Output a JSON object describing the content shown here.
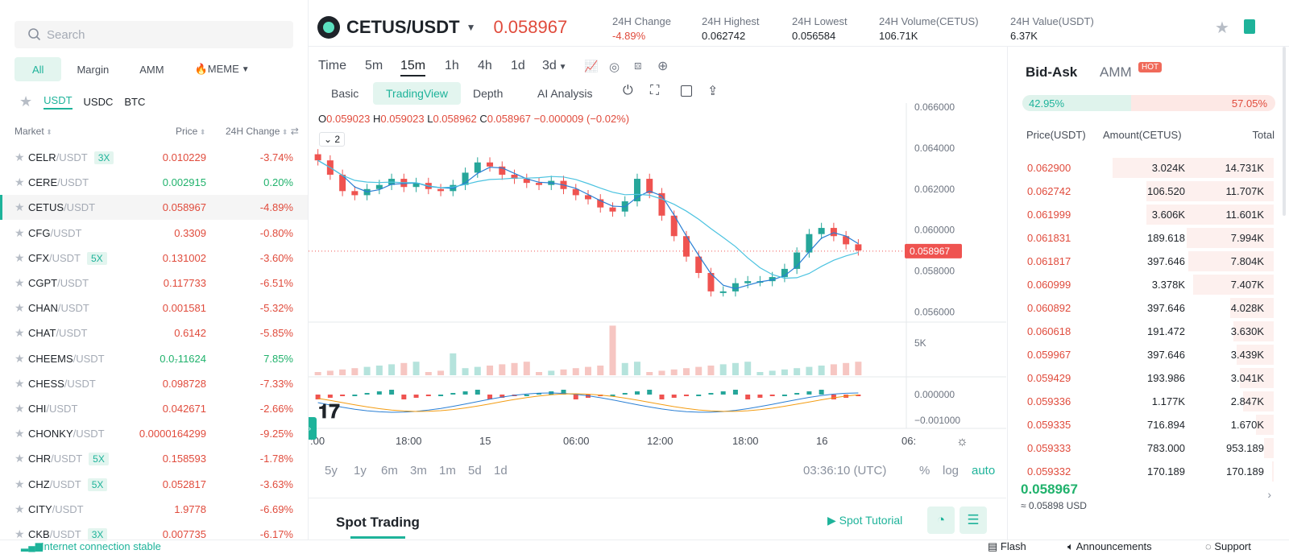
{
  "left": {
    "search_placeholder": "Search",
    "tabs": [
      "All",
      "Margin",
      "AMM",
      "🔥MEME"
    ],
    "quote_tabs": [
      "USDT",
      "USDC",
      "BTC"
    ],
    "headers": {
      "market": "Market",
      "price": "Price",
      "change": "24H Change"
    },
    "markets": [
      {
        "base": "CELR",
        "quote": "/USDT",
        "lev": "3X",
        "price": "0.010229",
        "change": "-3.74%",
        "up": false
      },
      {
        "base": "CERE",
        "quote": "/USDT",
        "lev": "",
        "price": "0.002915",
        "change": "0.20%",
        "up": true
      },
      {
        "base": "CETUS",
        "quote": "/USDT",
        "lev": "",
        "price": "0.058967",
        "change": "-4.89%",
        "up": false
      },
      {
        "base": "CFG",
        "quote": "/USDT",
        "lev": "",
        "price": "0.3309",
        "change": "-0.80%",
        "up": false
      },
      {
        "base": "CFX",
        "quote": "/USDT",
        "lev": "5X",
        "price": "0.131002",
        "change": "-3.60%",
        "up": false
      },
      {
        "base": "CGPT",
        "quote": "/USDT",
        "lev": "",
        "price": "0.117733",
        "change": "-6.51%",
        "up": false
      },
      {
        "base": "CHAN",
        "quote": "/USDT",
        "lev": "",
        "price": "0.001581",
        "change": "-5.32%",
        "up": false
      },
      {
        "base": "CHAT",
        "quote": "/USDT",
        "lev": "",
        "price": "0.6142",
        "change": "-5.85%",
        "up": false
      },
      {
        "base": "CHEEMS",
        "quote": "/USDT",
        "lev": "",
        "price": "0.0₇11624",
        "change": "7.85%",
        "up": true
      },
      {
        "base": "CHESS",
        "quote": "/USDT",
        "lev": "",
        "price": "0.098728",
        "change": "-7.33%",
        "up": false
      },
      {
        "base": "CHI",
        "quote": "/USDT",
        "lev": "",
        "price": "0.042671",
        "change": "-2.66%",
        "up": false
      },
      {
        "base": "CHONKY",
        "quote": "/USDT",
        "lev": "",
        "price": "0.0000164299",
        "change": "-9.25%",
        "up": false
      },
      {
        "base": "CHR",
        "quote": "/USDT",
        "lev": "5X",
        "price": "0.158593",
        "change": "-1.78%",
        "up": false
      },
      {
        "base": "CHZ",
        "quote": "/USDT",
        "lev": "5X",
        "price": "0.052817",
        "change": "-3.63%",
        "up": false
      },
      {
        "base": "CITY",
        "quote": "/USDT",
        "lev": "",
        "price": "1.9778",
        "change": "-6.69%",
        "up": false
      },
      {
        "base": "CKB",
        "quote": "/USDT",
        "lev": "3X",
        "price": "0.007735",
        "change": "-6.17%",
        "up": false
      }
    ]
  },
  "header": {
    "pair": "CETUS/USDT",
    "last_price": "0.058967",
    "stats": [
      {
        "label": "24H Change",
        "value": "-4.89%"
      },
      {
        "label": "24H Highest",
        "value": "0.062742"
      },
      {
        "label": "24H Lowest",
        "value": "0.056584"
      },
      {
        "label": "24H Volume(CETUS)",
        "value": "106.71K"
      },
      {
        "label": "24H Value(USDT)",
        "value": "6.37K"
      }
    ]
  },
  "chart": {
    "timeframes": [
      "Time",
      "5m",
      "15m",
      "1h",
      "4h",
      "1d",
      "3d"
    ],
    "modes": [
      "Basic",
      "TradingView",
      "Depth",
      "AI Analysis"
    ],
    "ohlc": {
      "o_label": "O",
      "o": "0.059023",
      "h_label": "H",
      "h": "0.059023",
      "l_label": "L",
      "l": "0.058962",
      "c_label": "C",
      "c": "0.058967",
      "chg": "−0.000009 (−0.02%)"
    },
    "indicator_count": "2",
    "price_ticks": [
      "0.066000",
      "0.064000",
      "0.062000",
      "0.060000",
      "0.058000",
      "0.056000"
    ],
    "current_price_tag": "0.058967",
    "volume_tick": "5K",
    "macd_ticks": [
      "0.000000",
      "−0.001000"
    ],
    "time_ticks": [
      ":00",
      "18:00",
      "15",
      "06:00",
      "12:00",
      "18:00",
      "16",
      "06:"
    ],
    "ranges": [
      "5y",
      "1y",
      "6m",
      "3m",
      "1m",
      "5d",
      "1d"
    ],
    "clock": "03:36:10 (UTC)",
    "scale_opts": [
      "%",
      "log",
      "auto"
    ],
    "closes": [
      0.0634,
      0.0627,
      0.0619,
      0.0617,
      0.062,
      0.0622,
      0.0625,
      0.0621,
      0.0623,
      0.062,
      0.0619,
      0.0622,
      0.0628,
      0.0633,
      0.0631,
      0.0627,
      0.0625,
      0.0623,
      0.0622,
      0.0624,
      0.062,
      0.0617,
      0.0615,
      0.0611,
      0.0609,
      0.0614,
      0.0625,
      0.0618,
      0.0607,
      0.0597,
      0.0587,
      0.0579,
      0.057,
      0.057,
      0.0574,
      0.0575,
      0.0575,
      0.0577,
      0.0581,
      0.0589,
      0.0598,
      0.0601,
      0.0597,
      0.0593,
      0.059
    ]
  },
  "bottom": {
    "spot_trading": "Spot Trading",
    "spot_tutorial": "Spot Tutorial"
  },
  "orderbook": {
    "tabs": [
      "Bid-Ask",
      "AMM"
    ],
    "hot": "HOT",
    "buy_pct": "42.95%",
    "sell_pct": "57.05%",
    "buy_ratio": 0.4295,
    "headers": [
      "Price(USDT)",
      "Amount(CETUS)",
      "Total"
    ],
    "asks": [
      {
        "price": "0.062900",
        "amount": "3.024K",
        "total": "14.731K",
        "depth": 1.0
      },
      {
        "price": "0.062742",
        "amount": "106.520",
        "total": "11.707K",
        "depth": 0.79
      },
      {
        "price": "0.061999",
        "amount": "3.606K",
        "total": "11.601K",
        "depth": 0.79
      },
      {
        "price": "0.061831",
        "amount": "189.618",
        "total": "7.994K",
        "depth": 0.54
      },
      {
        "price": "0.061817",
        "amount": "397.646",
        "total": "7.804K",
        "depth": 0.53
      },
      {
        "price": "0.060999",
        "amount": "3.378K",
        "total": "7.407K",
        "depth": 0.5
      },
      {
        "price": "0.060892",
        "amount": "397.646",
        "total": "4.028K",
        "depth": 0.27
      },
      {
        "price": "0.060618",
        "amount": "191.472",
        "total": "3.630K",
        "depth": 0.25
      },
      {
        "price": "0.059967",
        "amount": "397.646",
        "total": "3.439K",
        "depth": 0.23
      },
      {
        "price": "0.059429",
        "amount": "193.986",
        "total": "3.041K",
        "depth": 0.21
      },
      {
        "price": "0.059336",
        "amount": "1.177K",
        "total": "2.847K",
        "depth": 0.19
      },
      {
        "price": "0.059335",
        "amount": "716.894",
        "total": "1.670K",
        "depth": 0.11
      },
      {
        "price": "0.059333",
        "amount": "783.000",
        "total": "953.189",
        "depth": 0.06
      },
      {
        "price": "0.059332",
        "amount": "170.189",
        "total": "170.189",
        "depth": 0.01
      }
    ],
    "last_price": "0.058967",
    "last_usd": "≈ 0.05898 USD"
  },
  "footer": {
    "connection": "Internet connection stable",
    "flash": "Flash",
    "announcements": "Announcements",
    "support": "Support"
  },
  "colors": {
    "up": "#20b26c",
    "down": "#e04b3c",
    "accent": "#1eb39a"
  }
}
